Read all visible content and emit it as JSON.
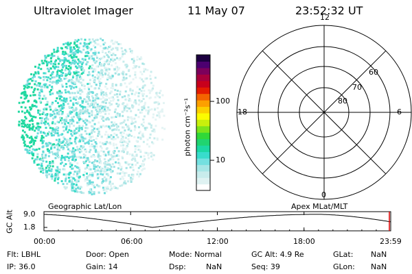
{
  "header": {
    "instrument": "Ultraviolet Imager",
    "date": "11 May 07",
    "time": "23:52:32 UT"
  },
  "colorbar": {
    "label": "photon cm⁻²s⁻¹",
    "ticks": [
      "100",
      "10"
    ],
    "colors": [
      "#ffffff",
      "#dff2f2",
      "#c8ecec",
      "#a6e6e6",
      "#74e0e0",
      "#38dccc",
      "#1cd8a4",
      "#20d470",
      "#30d838",
      "#7ce41c",
      "#c8f00c",
      "#fcfc00",
      "#fcd000",
      "#fca000",
      "#f46400",
      "#e41c00",
      "#c8001c",
      "#a8003c",
      "#7c005c",
      "#4c0070",
      "#1c0040"
    ]
  },
  "polar": {
    "mlt_labels": {
      "top": "12",
      "right": "6",
      "bottom": "0",
      "left": "18"
    },
    "lat_labels": [
      "60",
      "70",
      "80"
    ]
  },
  "plot": {
    "left_label": "Geographic Lat/Lon",
    "right_label": "Apex MLat/MLT",
    "ylabel": "GC Alt",
    "y_ticks": [
      "9.0",
      "1.8"
    ],
    "x_ticks": [
      "00:00",
      "06:00",
      "12:00",
      "18:00",
      "23:59"
    ]
  },
  "info": {
    "flt": "Flt: LBHL",
    "ip": "IP: 36.0",
    "door": "Door: Open",
    "gain": "Gain: 14",
    "mode": "Mode: Normal",
    "dsp_label": "Dsp:",
    "dsp_value": "NaN",
    "gcalt": "GC Alt: 4.9 Re",
    "seq": "Seq: 39",
    "glat_label": "GLat:",
    "glat_value": "NaN",
    "glon_label": "GLon:",
    "glon_value": "NaN"
  }
}
